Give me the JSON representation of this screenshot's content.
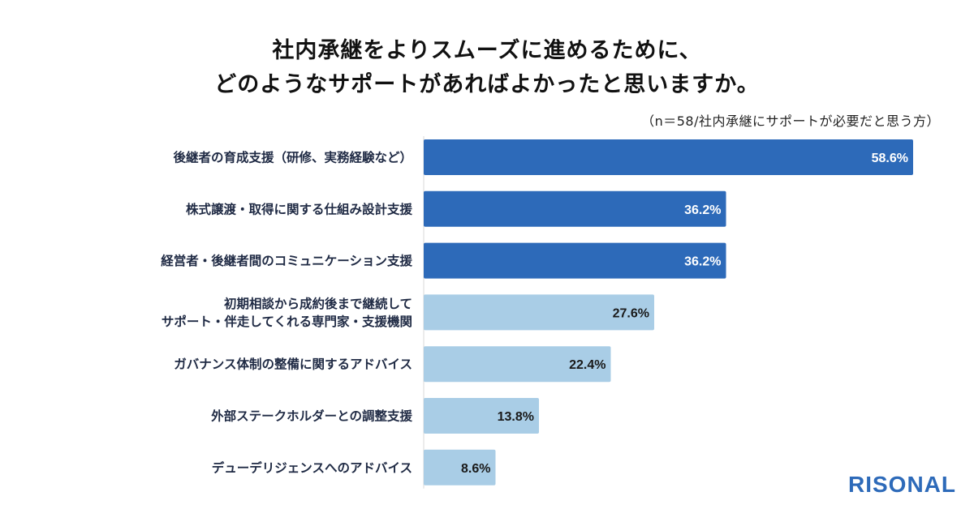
{
  "chart_data": {
    "type": "bar",
    "orientation": "horizontal",
    "title_lines": [
      "社内承継をよりスムーズに進めるために、",
      "どのようなサポートがあればよかったと思いますか。"
    ],
    "note": "（n＝58/社内承継にサポートが必要だと思う方）",
    "categories": [
      [
        "後継者の育成支援（研修、実務経験など）"
      ],
      [
        "株式譲渡・取得に関する仕組み設計支援"
      ],
      [
        "経営者・後継者間のコミュニケーション支援"
      ],
      [
        "初期相談から成約後まで継続して",
        "サポート・伴走してくれる専門家・支援機関"
      ],
      [
        "ガバナンス体制の整備に関するアドバイス"
      ],
      [
        "外部ステークホルダーとの調整支援"
      ],
      [
        "デューデリジェンスへのアドバイス"
      ]
    ],
    "values": [
      58.6,
      36.2,
      36.2,
      27.6,
      22.4,
      13.8,
      8.6
    ],
    "value_labels": [
      "58.6%",
      "36.2%",
      "36.2%",
      "27.6%",
      "22.4%",
      "13.8%",
      "8.6%"
    ],
    "highlight_count": 3,
    "colors": {
      "highlight": "#2d6ab9",
      "normal": "#a9cde6",
      "highlight_text": "#ffffff",
      "normal_text": "#1a1a1a"
    },
    "xlim": [
      0,
      58.6
    ],
    "unit": "%"
  },
  "brand": {
    "logo_text": "RISONAL"
  }
}
